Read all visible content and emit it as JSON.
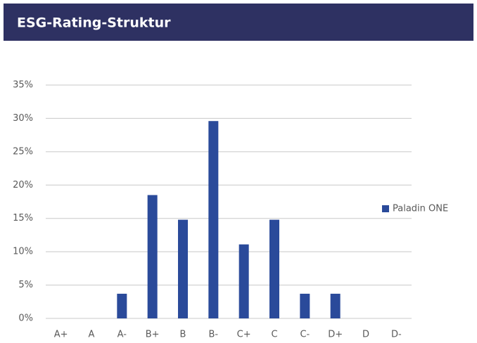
{
  "chart_data": {
    "type": "bar",
    "title": "ESG-Rating-Struktur",
    "categories": [
      "A+",
      "A",
      "A-",
      "B+",
      "B",
      "B-",
      "C+",
      "C",
      "C-",
      "D+",
      "D",
      "D-"
    ],
    "series": [
      {
        "name": "Paladin ONE",
        "color": "#2a4a9a",
        "values": [
          0,
          0,
          3.7,
          18.5,
          14.8,
          29.6,
          11.1,
          14.8,
          3.7,
          3.7,
          0,
          0
        ]
      }
    ],
    "ylim": [
      0,
      35
    ],
    "yticks": [
      {
        "value": 0,
        "label": "0%"
      },
      {
        "value": 5,
        "label": "5%"
      },
      {
        "value": 10,
        "label": "10%"
      },
      {
        "value": 15,
        "label": "15%"
      },
      {
        "value": 20,
        "label": "20%"
      },
      {
        "value": 25,
        "label": "25%"
      },
      {
        "value": 30,
        "label": "30%"
      },
      {
        "value": 35,
        "label": "35%"
      }
    ],
    "grid": true,
    "legend": "right",
    "header_color": "#2e3162"
  }
}
